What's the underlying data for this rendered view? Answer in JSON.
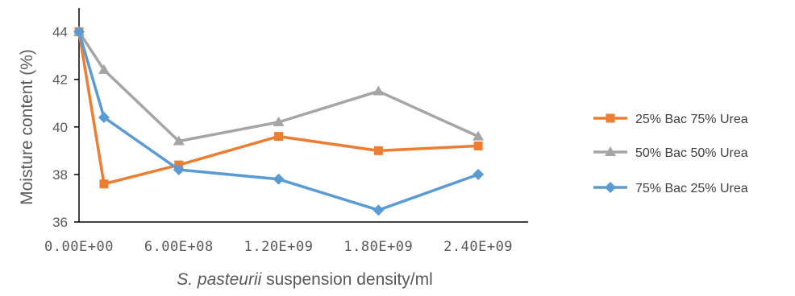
{
  "chart_data": {
    "type": "line",
    "title": "",
    "ylabel": "Moisture content (%)",
    "xlabel_italic": "S. pasteurii",
    "xlabel_rest": " suspension density/ml",
    "xlim": [
      0,
      2700000000
    ],
    "ylim": [
      36,
      45
    ],
    "x_ticks": [
      0,
      600000000,
      1200000000,
      1800000000,
      2400000000
    ],
    "x_tick_labels": [
      "0.00E+00",
      "6.00E+08",
      "1.20E+09",
      "1.80E+09",
      "2.40E+09"
    ],
    "y_ticks": [
      36,
      38,
      40,
      42,
      44
    ],
    "y_tick_labels": [
      "36",
      "38",
      "40",
      "42",
      "44"
    ],
    "grid": false,
    "legend_position": "right",
    "x": [
      0,
      150000000,
      600000000,
      1200000000,
      1800000000,
      2400000000
    ],
    "series": [
      {
        "name": "25% Bac 75% Urea",
        "color": "#ed7d31",
        "marker": "square",
        "values": [
          44.0,
          37.6,
          38.4,
          39.6,
          39.0,
          39.2
        ]
      },
      {
        "name": "50% Bac 50% Urea",
        "color": "#a5a5a5",
        "marker": "triangle",
        "values": [
          44.0,
          42.4,
          39.4,
          40.2,
          41.5,
          39.6
        ]
      },
      {
        "name": "75% Bac 25% Urea",
        "color": "#5b9bd5",
        "marker": "diamond",
        "values": [
          44.0,
          40.4,
          38.2,
          37.8,
          36.5,
          38.0
        ]
      }
    ]
  }
}
